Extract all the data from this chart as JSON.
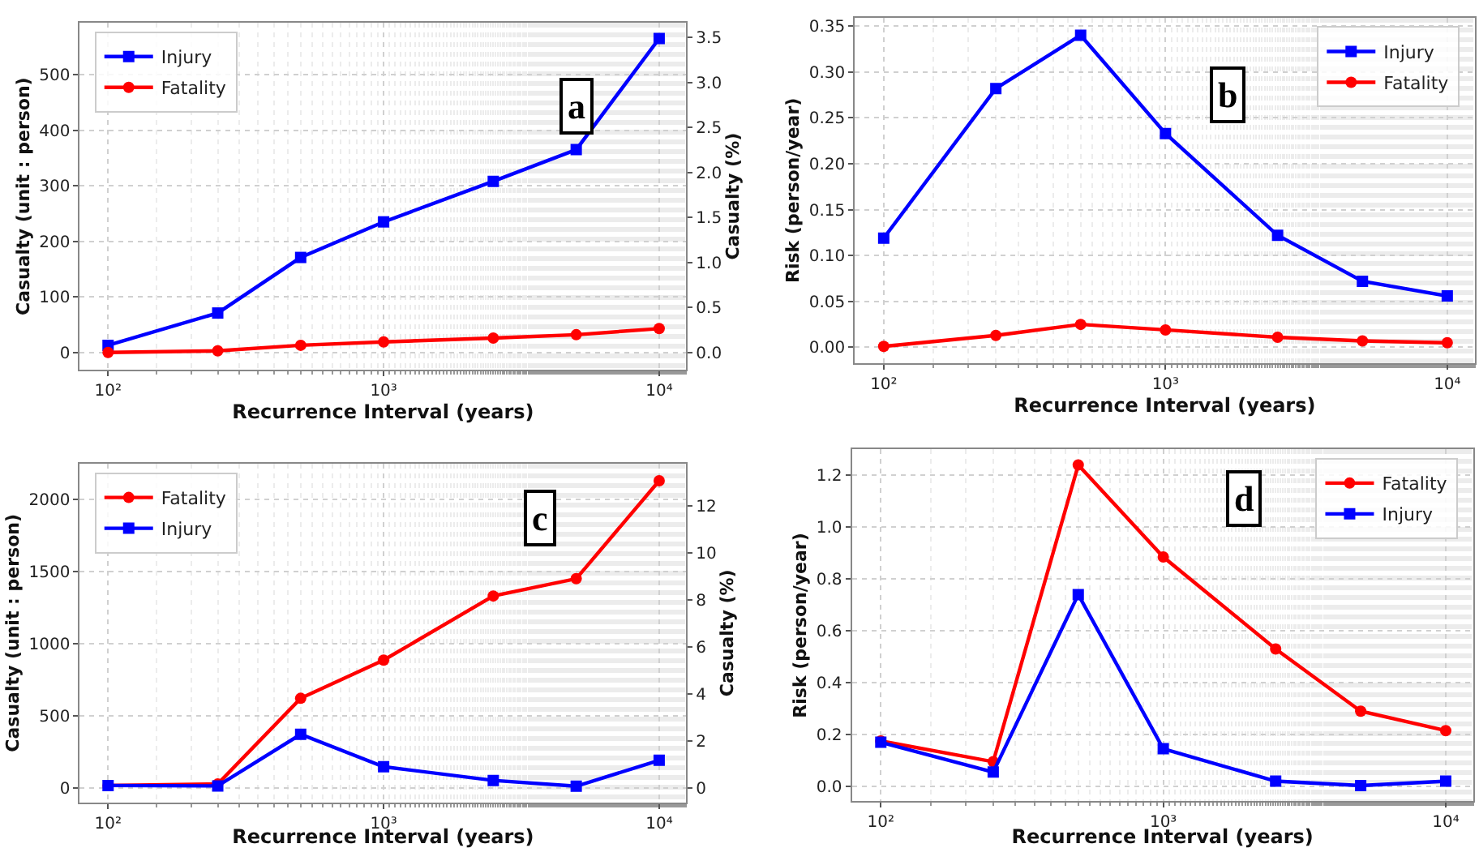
{
  "chart_data": [
    {
      "type": "line",
      "annotations": [
        "a"
      ],
      "xlabel": "Recurrence Interval (years)",
      "ylabel": "Casualty (unit : person)",
      "y2label": "Casualty (%)",
      "x": [
        100,
        250,
        500,
        1000,
        2500,
        5000,
        10000
      ],
      "log": "x",
      "grid": true,
      "legend": "top left",
      "xlim": [
        79,
        12540
      ],
      "xticks": [
        {
          "value": 100,
          "label": "10²"
        },
        {
          "value": 1000,
          "label": "10³"
        },
        {
          "value": 10000,
          "label": "10⁴"
        }
      ],
      "ylim": [
        -31,
        593
      ],
      "yticks": [
        0,
        100,
        200,
        300,
        400,
        500
      ],
      "y2lim": [
        -0.19,
        3.66
      ],
      "y2ticks": [
        {
          "value": 0,
          "label": "0.0"
        },
        {
          "value": 0.5,
          "label": "0.5"
        },
        {
          "value": 1,
          "label": "1.0"
        },
        {
          "value": 1.5,
          "label": "1.5"
        },
        {
          "value": 2,
          "label": "2.0"
        },
        {
          "value": 2.5,
          "label": "2.5"
        },
        {
          "value": 3,
          "label": "3.0"
        },
        {
          "value": 3.5,
          "label": "3.5"
        }
      ],
      "series": [
        {
          "name": "Injury",
          "color": "#0000ff",
          "marker": "square",
          "values": [
            13,
            71,
            171,
            235,
            308,
            365,
            565
          ]
        },
        {
          "name": "Fatality",
          "color": "#ff0000",
          "marker": "circle",
          "values": [
            0,
            3,
            13,
            19,
            26,
            32,
            43
          ]
        }
      ]
    },
    {
      "type": "line",
      "annotations": [
        "b"
      ],
      "xlabel": "Recurrence Interval (years)",
      "ylabel": "Risk (person/year)",
      "x": [
        100,
        250,
        500,
        1000,
        2500,
        5000,
        10000
      ],
      "log": "x",
      "grid": true,
      "legend": "top right",
      "xlim": [
        79,
        12500
      ],
      "xticks": [
        {
          "value": 100,
          "label": "10²"
        },
        {
          "value": 1000,
          "label": "10³"
        },
        {
          "value": 10000,
          "label": "10⁴"
        }
      ],
      "ylim": [
        -0.017,
        0.359
      ],
      "yticks": [
        {
          "value": 0,
          "label": "0.00"
        },
        {
          "value": 0.05,
          "label": "0.05"
        },
        {
          "value": 0.1,
          "label": "0.10"
        },
        {
          "value": 0.15,
          "label": "0.15"
        },
        {
          "value": 0.2,
          "label": "0.20"
        },
        {
          "value": 0.25,
          "label": "0.25"
        },
        {
          "value": 0.3,
          "label": "0.30"
        },
        {
          "value": 0.35,
          "label": "0.35"
        }
      ],
      "series": [
        {
          "name": "Injury",
          "color": "#0000ff",
          "marker": "square",
          "values": [
            0.119,
            0.282,
            0.34,
            0.233,
            0.122,
            0.072,
            0.056
          ]
        },
        {
          "name": "Fatality",
          "color": "#ff0000",
          "marker": "circle",
          "values": [
            0.001,
            0.013,
            0.025,
            0.019,
            0.011,
            0.007,
            0.005
          ]
        }
      ]
    },
    {
      "type": "line",
      "annotations": [
        "c"
      ],
      "xlabel": "Recurrence Interval (years)",
      "ylabel": "Casualty (unit : person)",
      "y2label": "Casualty (%)",
      "x": [
        100,
        250,
        500,
        1000,
        2500,
        5000,
        10000
      ],
      "log": "x",
      "grid": true,
      "legend": "top left",
      "xlim": [
        79,
        12540
      ],
      "xticks": [
        {
          "value": 100,
          "label": "10²"
        },
        {
          "value": 1000,
          "label": "10³"
        },
        {
          "value": 10000,
          "label": "10⁴"
        }
      ],
      "ylim": [
        -101,
        2247
      ],
      "yticks": [
        0,
        500,
        1000,
        1500,
        2000
      ],
      "y2lim": [
        -0.62,
        13.78
      ],
      "y2ticks": [
        0,
        2,
        4,
        6,
        8,
        10,
        12
      ],
      "series": [
        {
          "name": "Fatality",
          "color": "#ff0000",
          "marker": "circle",
          "values": [
            15,
            25,
            620,
            885,
            1330,
            1450,
            2130
          ]
        },
        {
          "name": "Injury",
          "color": "#0000ff",
          "marker": "square",
          "values": [
            15,
            12,
            370,
            145,
            50,
            10,
            190
          ]
        }
      ]
    },
    {
      "type": "line",
      "annotations": [
        "d"
      ],
      "xlabel": "Recurrence Interval (years)",
      "ylabel": "Risk (person/year)",
      "x": [
        100,
        250,
        500,
        1000,
        2500,
        5000,
        10000
      ],
      "log": "x",
      "grid": true,
      "legend": "top right",
      "xlim": [
        79,
        12500
      ],
      "xticks": [
        {
          "value": 100,
          "label": "10²"
        },
        {
          "value": 1000,
          "label": "10³"
        },
        {
          "value": 10000,
          "label": "10⁴"
        }
      ],
      "ylim": [
        -0.058,
        1.3
      ],
      "yticks": [
        {
          "value": 0,
          "label": "0.0"
        },
        {
          "value": 0.2,
          "label": "0.2"
        },
        {
          "value": 0.4,
          "label": "0.4"
        },
        {
          "value": 0.6,
          "label": "0.6"
        },
        {
          "value": 0.8,
          "label": "0.8"
        },
        {
          "value": 1,
          "label": "1.0"
        },
        {
          "value": 1.2,
          "label": "1.2"
        }
      ],
      "series": [
        {
          "name": "Fatality",
          "color": "#ff0000",
          "marker": "circle",
          "values": [
            0.175,
            0.095,
            1.24,
            0.885,
            0.53,
            0.29,
            0.215
          ]
        },
        {
          "name": "Injury",
          "color": "#0000ff",
          "marker": "square",
          "values": [
            0.17,
            0.055,
            0.74,
            0.145,
            0.02,
            0.003,
            0.02
          ]
        }
      ]
    }
  ]
}
